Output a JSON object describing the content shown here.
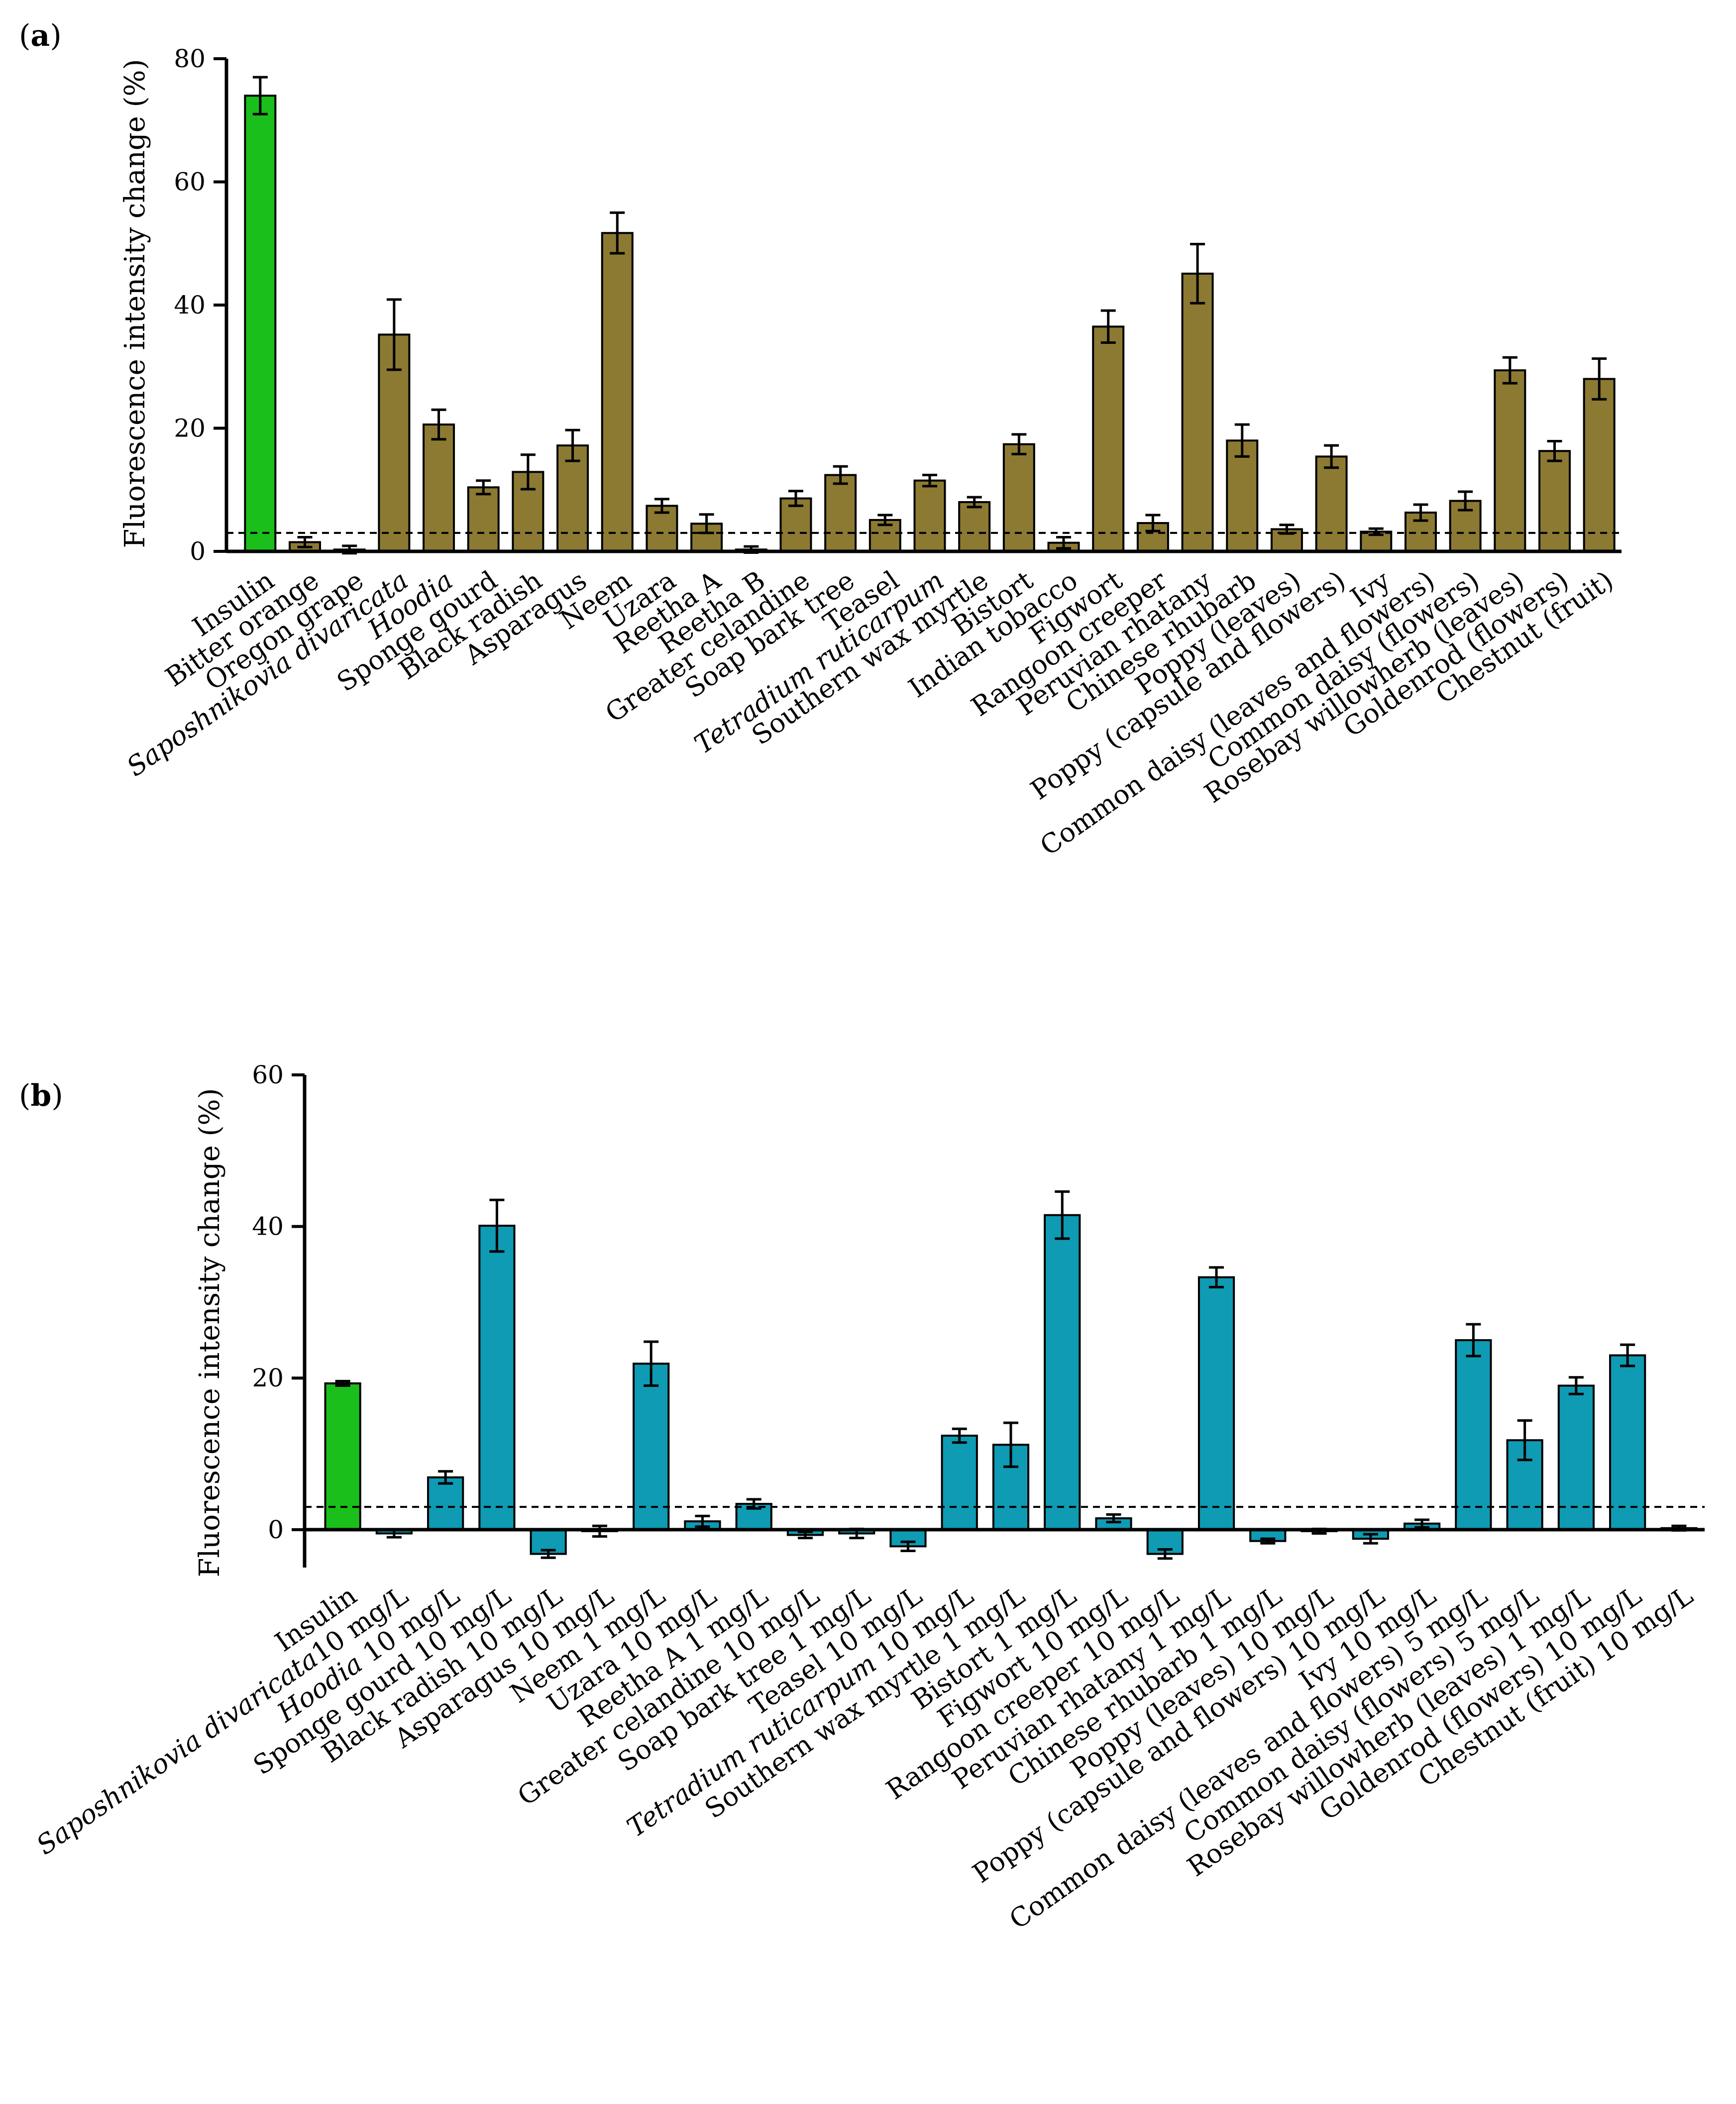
{
  "chart_data": [
    {
      "panel": "(a)",
      "panel_letter": "a",
      "type": "bar",
      "ylabel": "Fluorescence intensity change (%)",
      "ylim": [
        0,
        80
      ],
      "yticks": [
        0,
        20,
        40,
        60,
        80
      ],
      "threshold": 3,
      "colors": {
        "control": "#1bbf1b",
        "sample": "#8c7a33"
      },
      "categories": [
        {
          "label": "Insulin",
          "value": 74,
          "error": 3,
          "control": true
        },
        {
          "label": "Bitter orange",
          "value": 1.5,
          "error": 0.8
        },
        {
          "label": "Oregon grape",
          "value": 0.3,
          "error": 0.6
        },
        {
          "label": "Saposhnikovia divaricata",
          "value": 35.2,
          "error": 5.7,
          "italic": true
        },
        {
          "label": "Hoodia",
          "value": 20.6,
          "error": 2.4,
          "italic": true
        },
        {
          "label": "Sponge gourd",
          "value": 10.4,
          "error": 1.1
        },
        {
          "label": "Black radish",
          "value": 12.9,
          "error": 2.8
        },
        {
          "label": "Asparagus",
          "value": 17.2,
          "error": 2.5
        },
        {
          "label": "Neem",
          "value": 51.7,
          "error": 3.3
        },
        {
          "label": "Uzara",
          "value": 7.4,
          "error": 1.1
        },
        {
          "label": "Reetha A",
          "value": 4.5,
          "error": 1.5
        },
        {
          "label": "Reetha B",
          "value": 0.3,
          "error": 0.5
        },
        {
          "label": "Greater celandine",
          "value": 8.6,
          "error": 1.2
        },
        {
          "label": "Soap bark tree",
          "value": 12.4,
          "error": 1.4
        },
        {
          "label": "Teasel",
          "value": 5.1,
          "error": 0.8
        },
        {
          "label": "Tetradium ruticarpum",
          "value": 11.5,
          "error": 0.9,
          "italic": true
        },
        {
          "label": "Southern wax myrtle",
          "value": 8.0,
          "error": 0.8
        },
        {
          "label": "Bistort",
          "value": 17.4,
          "error": 1.6
        },
        {
          "label": "Indian tobacco",
          "value": 1.4,
          "error": 0.9
        },
        {
          "label": "Figwort",
          "value": 36.5,
          "error": 2.6
        },
        {
          "label": "Rangoon creeper",
          "value": 4.6,
          "error": 1.3
        },
        {
          "label": "Peruvian rhatany",
          "value": 45.1,
          "error": 4.8
        },
        {
          "label": "Chinese rhubarb",
          "value": 18.0,
          "error": 2.6
        },
        {
          "label": "Poppy (leaves)",
          "value": 3.6,
          "error": 0.7
        },
        {
          "label": "Poppy (capsule and flowers)",
          "value": 15.4,
          "error": 1.8
        },
        {
          "label": "Ivy",
          "value": 3.2,
          "error": 0.5
        },
        {
          "label": "Common daisy (leaves and flowers)",
          "value": 6.3,
          "error": 1.3
        },
        {
          "label": "Common daisy (flowers)",
          "value": 8.2,
          "error": 1.5
        },
        {
          "label": "Rosebay willowherb (leaves)",
          "value": 29.4,
          "error": 2.1
        },
        {
          "label": "Goldenrod (flowers)",
          "value": 16.3,
          "error": 1.6
        },
        {
          "label": "Chestnut (fruit)",
          "value": 28.0,
          "error": 3.3
        }
      ]
    },
    {
      "panel": "(b)",
      "panel_letter": "b",
      "type": "bar",
      "ylabel": "Fluorescence intensity change (%)",
      "ylim": [
        -5,
        60
      ],
      "yticks": [
        0,
        20,
        40,
        60
      ],
      "threshold": 3,
      "colors": {
        "control": "#1bbf1b",
        "sample": "#0f9bb3"
      },
      "categories": [
        {
          "label": "Insulin",
          "value": 19.3,
          "error": 0.3,
          "control": true
        },
        {
          "label": "Saposhnikovia divaricata 10 mg/L",
          "italic_part": "Saposhnikovia divaricata",
          "rest": "10 mg/L",
          "value": -0.5,
          "error": 0.5
        },
        {
          "label": "Hoodia 10 mg/L",
          "italic_part": "Hoodia",
          "rest": " 10 mg/L",
          "value": 6.9,
          "error": 0.8
        },
        {
          "label": "Sponge gourd 10 mg/L",
          "value": 40.1,
          "error": 3.4
        },
        {
          "label": "Black radish 10 mg/L",
          "value": -3.2,
          "error": 0.5
        },
        {
          "label": "Asparagus 10 mg/L",
          "value": -0.2,
          "error": 0.7
        },
        {
          "label": "Neem 1 mg/L",
          "value": 21.9,
          "error": 2.9
        },
        {
          "label": "Uzara 10 mg/L",
          "value": 1.1,
          "error": 0.7
        },
        {
          "label": "Reetha A 1 mg/L",
          "value": 3.4,
          "error": 0.6
        },
        {
          "label": "Greater celandine 10 mg/L",
          "value": -0.7,
          "error": 0.4
        },
        {
          "label": "Soap bark tree 1 mg/L",
          "value": -0.5,
          "error": 0.6
        },
        {
          "label": "Teasel 10 mg/L",
          "value": -2.2,
          "error": 0.6
        },
        {
          "label": "Tetradium ruticarpum 10 mg/L",
          "italic_part": "Tetradium ruticarpum",
          "rest": " 10 mg/L",
          "value": 12.4,
          "error": 0.9
        },
        {
          "label": "Southern wax myrtle 1 mg/L",
          "value": 11.2,
          "error": 2.9
        },
        {
          "label": "Bistort 1 mg/L",
          "value": 41.5,
          "error": 3.1
        },
        {
          "label": "Figwort 10 mg/L",
          "value": 1.5,
          "error": 0.5
        },
        {
          "label": "Rangoon creeper 10 mg/L",
          "value": -3.2,
          "error": 0.6
        },
        {
          "label": "Peruvian rhatany 1 mg/L",
          "value": 33.3,
          "error": 1.3
        },
        {
          "label": "Chinese rhubarb 1 mg/L",
          "value": -1.5,
          "error": 0.3
        },
        {
          "label": "Poppy (leaves) 10 mg/L",
          "value": -0.2,
          "error": 0.3
        },
        {
          "label": "Poppy (capsule and flowers) 10 mg/L",
          "value": -1.2,
          "error": 0.6
        },
        {
          "label": "Ivy 10 mg/L",
          "value": 0.8,
          "error": 0.5
        },
        {
          "label": "Common daisy (leaves and flowers) 5 mg/L",
          "value": 25.0,
          "error": 2.1
        },
        {
          "label": "Common daisy (flowers) 5 mg/L",
          "value": 11.8,
          "error": 2.6
        },
        {
          "label": "Rosebay willowherb (leaves) 1 mg/L",
          "value": 19.0,
          "error": 1.1
        },
        {
          "label": "Goldenrod (flowers) 10 mg/L",
          "value": 23.0,
          "error": 1.4
        },
        {
          "label": "Chestnut (fruit) 10 mg/L",
          "value": 0.2,
          "error": 0.3
        }
      ]
    }
  ]
}
